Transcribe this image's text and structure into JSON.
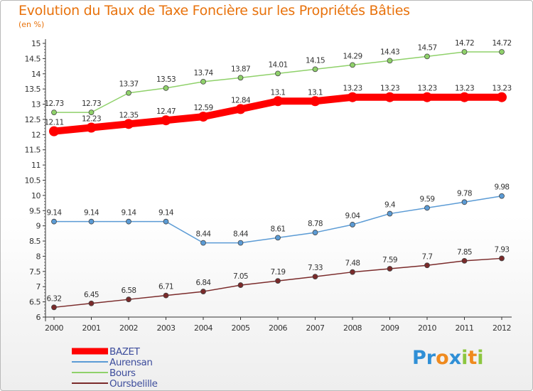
{
  "title": "Evolution du Taux de Taxe Foncière sur les Propriétés Bâties",
  "unit_label": "(en %)",
  "logo": {
    "letters": [
      {
        "ch": "P",
        "color": "#2f8fd6"
      },
      {
        "ch": "r",
        "color": "#2f8fd6"
      },
      {
        "ch": "o",
        "color": "#ef8a1e"
      },
      {
        "ch": "x",
        "color": "#2f8fd6"
      },
      {
        "ch": "i",
        "color": "#8cc63f"
      },
      {
        "ch": "t",
        "color": "#ef8a1e"
      },
      {
        "ch": "i",
        "color": "#8cc63f"
      }
    ]
  },
  "chart_data": {
    "type": "line",
    "title": "Evolution du Taux de Taxe Foncière sur les Propriétés Bâties",
    "ylabel": "(en %)",
    "xlabel": "",
    "x": [
      "2000",
      "2001",
      "2002",
      "2003",
      "2004",
      "2005",
      "2006",
      "2007",
      "2008",
      "2009",
      "2010",
      "2011",
      "2012"
    ],
    "ylim": [
      6,
      15
    ],
    "yticks": [
      "6",
      "6.5",
      "7",
      "7.5",
      "8",
      "8.5",
      "9",
      "9.5",
      "10",
      "10.5",
      "11",
      "11.5",
      "12",
      "12.5",
      "13",
      "13.5",
      "14",
      "14.5",
      "15"
    ],
    "grid": false,
    "legend_position": "bottom-left",
    "series": [
      {
        "name": "BAZET",
        "color": "#ff0000",
        "values": [
          12.11,
          12.23,
          12.35,
          12.47,
          12.59,
          12.84,
          13.1,
          13.1,
          13.23,
          13.23,
          13.23,
          13.23,
          13.23
        ],
        "labels": [
          "12.11",
          "12.23",
          "12.35",
          "12.47",
          "12.59",
          "12.84",
          "13.1",
          "13.1",
          "13.23",
          "13.23",
          "13.23",
          "13.23",
          "13.23"
        ]
      },
      {
        "name": "Aurensan",
        "color": "#5b9bd5",
        "values": [
          9.14,
          9.14,
          9.14,
          9.14,
          8.44,
          8.44,
          8.61,
          8.78,
          9.04,
          9.4,
          9.59,
          9.78,
          9.98
        ],
        "labels": [
          "9.14",
          "9.14",
          "9.14",
          "9.14",
          "8.44",
          "8.44",
          "8.61",
          "8.78",
          "9.04",
          "9.4",
          "9.59",
          "9.78",
          "9.98"
        ]
      },
      {
        "name": "Bours",
        "color": "#8fd16a",
        "values": [
          12.73,
          12.73,
          13.37,
          13.53,
          13.74,
          13.87,
          14.01,
          14.15,
          14.29,
          14.43,
          14.57,
          14.72,
          14.72
        ],
        "labels": [
          "12.73",
          "12.73",
          "13.37",
          "13.53",
          "13.74",
          "13.87",
          "14.01",
          "14.15",
          "14.29",
          "14.43",
          "14.57",
          "14.72",
          "14.72"
        ]
      },
      {
        "name": "Oursbelille",
        "color": "#7a2a2a",
        "values": [
          6.32,
          6.45,
          6.58,
          6.71,
          6.84,
          7.05,
          7.19,
          7.33,
          7.48,
          7.59,
          7.7,
          7.85,
          7.93
        ],
        "labels": [
          "6.32",
          "6.45",
          "6.58",
          "6.71",
          "6.84",
          "7.05",
          "7.19",
          "7.33",
          "7.48",
          "7.59",
          "7.7",
          "7.85",
          "7.93"
        ]
      }
    ]
  }
}
